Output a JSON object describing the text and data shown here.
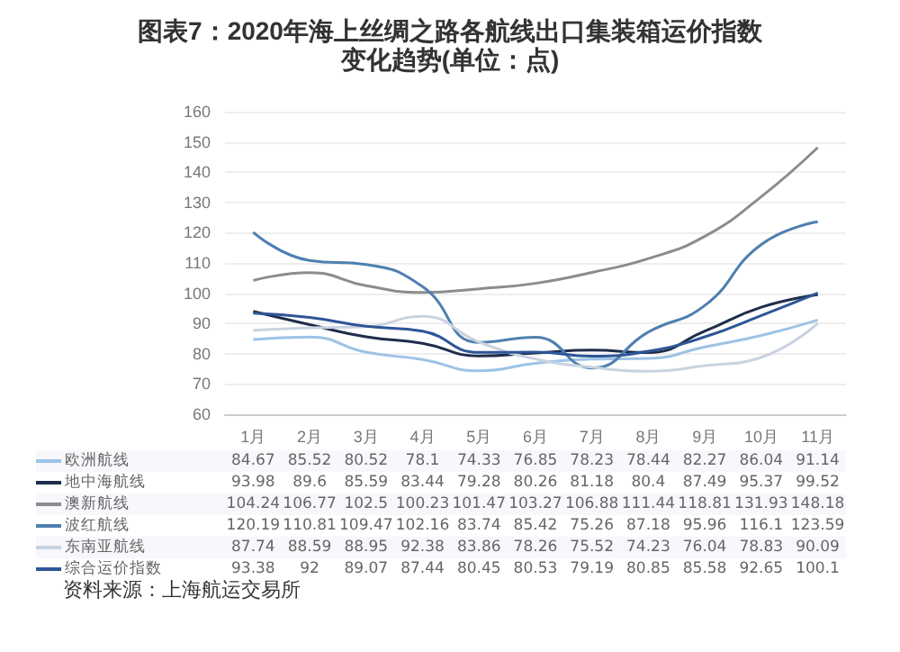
{
  "chart_data": {
    "type": "line",
    "title": "图表7：2020年海上丝绸之路各航线出口集装箱运价指数变化趋势(单位：点)",
    "categories": [
      "1月",
      "2月",
      "3月",
      "4月",
      "5月",
      "6月",
      "7月",
      "8月",
      "9月",
      "10月",
      "11月"
    ],
    "series": [
      {
        "name": "欧洲航线",
        "color": "#9dc3e6",
        "values": [
          84.67,
          85.52,
          80.52,
          78.1,
          74.33,
          76.85,
          78.23,
          78.44,
          82.27,
          86.04,
          91.14
        ]
      },
      {
        "name": "地中海航线",
        "color": "#1f2d4a",
        "values": [
          93.98,
          89.6,
          85.59,
          83.44,
          79.28,
          80.26,
          81.18,
          80.4,
          87.49,
          95.37,
          99.52
        ]
      },
      {
        "name": "澳新航线",
        "color": "#8c8c8c",
        "values": [
          104.24,
          106.77,
          102.5,
          100.23,
          101.47,
          103.27,
          106.88,
          111.44,
          118.81,
          131.93,
          148.18
        ]
      },
      {
        "name": "波红航线",
        "color": "#4f7fb0",
        "values": [
          120.19,
          110.81,
          109.47,
          102.16,
          83.74,
          85.42,
          75.26,
          87.18,
          95.96,
          116.1,
          123.59
        ]
      },
      {
        "name": "东南亚航线",
        "color": "#c9d3e0",
        "values": [
          87.74,
          88.59,
          88.95,
          92.38,
          83.86,
          78.26,
          75.52,
          74.23,
          76.04,
          78.83,
          90.09
        ]
      },
      {
        "name": "综合运价指数",
        "color": "#2e5597",
        "values": [
          93.38,
          92,
          89.07,
          87.44,
          80.45,
          80.53,
          79.19,
          80.85,
          85.58,
          92.65,
          100.1
        ]
      }
    ],
    "ylim": [
      60,
      160
    ],
    "yticks": [
      60,
      70,
      80,
      90,
      100,
      110,
      120,
      130,
      140,
      150,
      160
    ],
    "grid": "y",
    "legend": "bottom",
    "data_labels": true,
    "marker": "none",
    "line_style": "solid",
    "annotations": [
      "资料来源：上海航运交易所"
    ]
  }
}
